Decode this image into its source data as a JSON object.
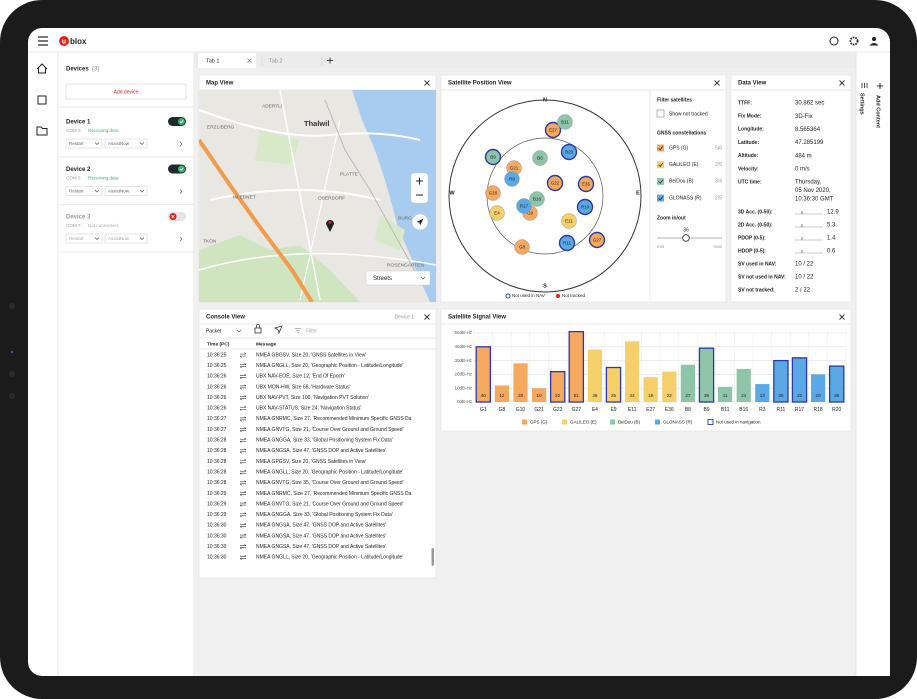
{
  "header": {
    "logo_mark": "u",
    "logo_text": "blox"
  },
  "tabs": [
    "Tab 1",
    "Tab 2"
  ],
  "devices": {
    "title": "Devices",
    "count": "(3)",
    "add_button": "Add device",
    "items": [
      {
        "name": "Device 1",
        "port": "COM 3",
        "status": "Receiving data",
        "restart": "Restart",
        "assist": "AssistNow"
      },
      {
        "name": "Device 2",
        "port": "COM 5",
        "status": "Receiving data",
        "restart": "Restart",
        "assist": "AssistNow"
      },
      {
        "name": "Device 3",
        "port": "COM 7",
        "status": "Not connected",
        "restart": "Restart",
        "assist": "AssistNow"
      }
    ]
  },
  "map": {
    "title": "Map View",
    "places": [
      "ADERTLI",
      "ERZLIBERG",
      "Thalwil",
      "PLATTE",
      "IM EBNET",
      "OBERDORF",
      "BURG",
      "TKON",
      "ROSENGARTEN"
    ],
    "layer": "Streets"
  },
  "sky": {
    "title": "Satellite Position View",
    "compass": [
      "N",
      "E",
      "S",
      "W"
    ],
    "satellites": [
      {
        "label": "E27",
        "color": "#f5a860"
      },
      {
        "label": "B11",
        "color": "#8ec5a8"
      },
      {
        "label": "B9",
        "color": "#8ec5a8"
      },
      {
        "label": "B6",
        "color": "#8ec5a8"
      },
      {
        "label": "R20",
        "color": "#5aa9e6"
      },
      {
        "label": "G21",
        "color": "#f5a860"
      },
      {
        "label": "R9",
        "color": "#5aa9e6"
      },
      {
        "label": "G22",
        "color": "#f5a860"
      },
      {
        "label": "E36",
        "color": "#f5a860"
      },
      {
        "label": "G10",
        "color": "#f5a860"
      },
      {
        "label": "B16",
        "color": "#8ec5a8"
      },
      {
        "label": "G9",
        "color": "#f5a860"
      },
      {
        "label": "R17",
        "color": "#5aa9e6"
      },
      {
        "label": "E4",
        "color": "#f5cf6a"
      },
      {
        "label": "R19",
        "color": "#5aa9e6"
      },
      {
        "label": "E11",
        "color": "#f5cf6a"
      },
      {
        "label": "R11",
        "color": "#5aa9e6"
      },
      {
        "label": "G27",
        "color": "#f5a860"
      },
      {
        "label": "G8",
        "color": "#f5a860"
      }
    ],
    "legend": [
      "Not used in NAV",
      "Not tracked"
    ]
  },
  "filter": {
    "title": "Filter satellites",
    "show_not_tracked": "Show not tracked",
    "constellations_title": "GNSS constellations",
    "constellations": [
      {
        "name": "GPS (G)",
        "count": "5/6",
        "color": "#f5a860"
      },
      {
        "name": "GALILEO (E)",
        "count": "2/5",
        "color": "#f5cf6a"
      },
      {
        "name": "BeiDou (B)",
        "count": "3/4",
        "color": "#8ec5a8"
      },
      {
        "name": "GLONASS (R)",
        "count": "2/5",
        "color": "#5aa9e6"
      }
    ],
    "zoom_title": "Zoom in/out",
    "zoom_value": 36,
    "zoom_min": "min",
    "zoom_max": "max"
  },
  "data_view": {
    "title": "Data View",
    "rows": [
      {
        "label": "TTFF:",
        "value": "30.862 sec"
      },
      {
        "label": "Fix Mode:",
        "value": "3D-Fix"
      },
      {
        "label": "Longitude:",
        "value": "8.565364"
      },
      {
        "label": "Latitude:",
        "value": "47.285199"
      },
      {
        "label": "Altitude:",
        "value": "484 m"
      },
      {
        "label": "Velocity:",
        "value": "0 m/s"
      }
    ],
    "utc": {
      "label": "UTC time:",
      "lines": [
        "Thursday,",
        "05 Nov 2020,",
        "10:36:30 GMT"
      ]
    },
    "accuracy": [
      {
        "label": "3D Acc. (0-50):",
        "value": 12.9
      },
      {
        "label": "2D Acc. (0-50):",
        "value": 5.3
      },
      {
        "label": "PDOP (0-5):",
        "value": 1.4
      },
      {
        "label": "HDOP (0-5):",
        "value": 0.6
      }
    ],
    "sv": [
      {
        "label": "SV used in NAV:",
        "value": "10 / 22"
      },
      {
        "label": "SV not used in NAV:",
        "value": "10 / 22"
      },
      {
        "label": "SV not tracked:",
        "value": "2 / 22"
      }
    ]
  },
  "side": {
    "settings": "Settings",
    "add_content": "Add Content"
  },
  "console": {
    "title": "Console View",
    "device": "Device 1",
    "packet": "Packet",
    "filter": "Filter",
    "columns": [
      "Time (PC)",
      "Message"
    ],
    "rows": [
      [
        "10:36:25",
        "NMEA GBGSV,  Size  20,  'GNSS Satellites in View'"
      ],
      [
        "10:36:25",
        "NMEA GNGLL,  Size  20,  'Geographic Position - Latitude/Longitude'"
      ],
      [
        "10:36:26",
        "UBX NAV-EOE,  Size  12,  'End Of Epoch'"
      ],
      [
        "10:36:26",
        "UBX MON-HW,  Size  68,  'Hardware Status'"
      ],
      [
        "10:36:26",
        "UBX NAV-PVT,  Size 100,  'Navigation PVT Solution'"
      ],
      [
        "10:36:26",
        "UBX NAV-STATUS,  Size  24,  'Navigation Status'"
      ],
      [
        "10:36:27",
        "NMEA GNRMC,  Size  27,  'Recommended Minimum Specific GNSS Da"
      ],
      [
        "10:36:27",
        "NMEA GNVTG,  Size  21,  'Course Over Ground and Ground Speed'"
      ],
      [
        "10:36:28",
        "NMEA GNGGA,  Size  33,  'Global Positioning System Fix Data'"
      ],
      [
        "10:36:28",
        "NMEA GNGSA,  Size  47,  'GNSS DOP and Active Satellites'"
      ],
      [
        "10:36:28",
        "NMEA GPGSV,  Size  20,  'GNSS Satellites in View'"
      ],
      [
        "10:36:28",
        "NMEA GNGLL,  Size  20,  'Geographic Position - Latitude/Longitude'"
      ],
      [
        "10:36:28",
        "NMEA GNVTG,  Size 35,  'Course Over Ground and Ground Speed'"
      ],
      [
        "10:36:29",
        "NMEA GNRMC,  Size  27,  'Recommended Minimum Specific GNSS Da"
      ],
      [
        "10:36:29",
        "NMEA GNVTG,  Size  21,  'Course Over Ground and Ground Speed'"
      ],
      [
        "10:36:29",
        "NMEA GNGGA,  Size  33,  'Global Positioning System Fix Data'"
      ],
      [
        "10:36:30",
        "NMEA GNGSA,  Size  47,  'GNSS DOP and Active Satellites'"
      ],
      [
        "10:36:30",
        "NMEA GNGSA,  Size  47,  'GNSS DOP and Active Satellites'"
      ],
      [
        "10:36:30",
        "NMEA GNGSA,  Size  47,  'GNSS DOP and Active Satellites'"
      ],
      [
        "10:36:30",
        "NMEA GNGLL,  Size  20,  'Geographic Position - Latitude/Longitude'"
      ]
    ]
  },
  "chart_data": {
    "type": "bar",
    "title": "Satellite Signal View",
    "categories": [
      "G1",
      "G8",
      "G10",
      "G21",
      "G22",
      "G27",
      "E4",
      "E9",
      "E11",
      "E27",
      "E36",
      "B8",
      "B9",
      "B11",
      "B16",
      "R3",
      "R11",
      "R17",
      "R18",
      "R20"
    ],
    "series": [
      {
        "name": "GPS (G)",
        "color": "#f5a860",
        "values": [
          40,
          12,
          28,
          10,
          22,
          51,
          null,
          null,
          null,
          null,
          null,
          null,
          null,
          null,
          null,
          null,
          null,
          null,
          null,
          null
        ]
      },
      {
        "name": "GALILEO (E)",
        "color": "#f5cf6a",
        "values": [
          null,
          null,
          null,
          null,
          null,
          null,
          38,
          25,
          44,
          18,
          22,
          null,
          null,
          null,
          null,
          null,
          null,
          null,
          null,
          null
        ]
      },
      {
        "name": "BeiDou (B)",
        "color": "#8ec5a8",
        "values": [
          null,
          null,
          null,
          null,
          null,
          null,
          null,
          null,
          null,
          null,
          null,
          27,
          39,
          11,
          24,
          null,
          null,
          null,
          null,
          null
        ]
      },
      {
        "name": "GLONASS (R)",
        "color": "#5aa9e6",
        "values": [
          null,
          null,
          null,
          null,
          null,
          null,
          null,
          null,
          null,
          null,
          null,
          null,
          null,
          null,
          null,
          13,
          30,
          32,
          20,
          26
        ]
      }
    ],
    "not_used_in_navigation": {
      "name": "Not used in navigation",
      "color": "#2b3a9e",
      "flags": [
        true,
        false,
        false,
        false,
        true,
        true,
        false,
        true,
        false,
        false,
        false,
        false,
        true,
        false,
        false,
        false,
        true,
        true,
        false,
        true
      ]
    },
    "ylim": [
      0,
      52
    ],
    "yticks": [
      {
        "value": 0,
        "label": "0dB-Hz"
      },
      {
        "value": 10,
        "label": "10dB-Hz"
      },
      {
        "value": 20,
        "label": "20dB-Hz"
      },
      {
        "value": 30,
        "label": "30dB-Hz"
      },
      {
        "value": 40,
        "label": "40dB-Hz"
      },
      {
        "value": 50,
        "label": "50dB-Hz"
      }
    ],
    "grid": true
  }
}
